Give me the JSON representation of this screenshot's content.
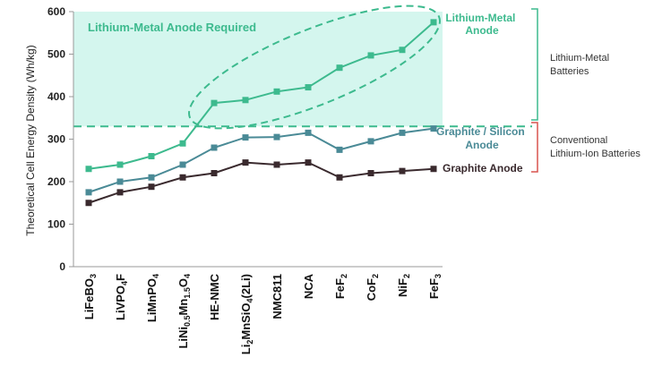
{
  "chart_data": {
    "type": "line",
    "ylabel": "Theoretical Cell Energy Density (Wh/kg)",
    "ylim": [
      0,
      600
    ],
    "yticks": [
      0,
      100,
      200,
      300,
      400,
      500,
      600
    ],
    "categories": [
      {
        "base": "LiFeBO",
        "parts": [
          [
            "LiFeBO",
            ""
          ],
          [
            "3",
            "sub"
          ]
        ]
      },
      {
        "base": "LiVPO4F",
        "parts": [
          [
            "LiVPO",
            ""
          ],
          [
            "4",
            "sub"
          ],
          [
            "F",
            ""
          ]
        ]
      },
      {
        "base": "LiMnPO4",
        "parts": [
          [
            "LiMnPO",
            ""
          ],
          [
            "4",
            "sub"
          ]
        ]
      },
      {
        "base": "LiNi0.5Mn1.5O4",
        "parts": [
          [
            "LiNi",
            ""
          ],
          [
            "0.5",
            "sub"
          ],
          [
            "Mn",
            ""
          ],
          [
            "1.5",
            "sub"
          ],
          [
            "O",
            ""
          ],
          [
            "4",
            "sub"
          ]
        ]
      },
      {
        "base": "HE-NMC",
        "parts": [
          [
            "HE-NMC",
            ""
          ]
        ]
      },
      {
        "base": "Li2MnSiO4(2Li)",
        "parts": [
          [
            "Li",
            ""
          ],
          [
            "2",
            "sub"
          ],
          [
            "MnSiO",
            ""
          ],
          [
            "4",
            "sub"
          ],
          [
            "(2Li)",
            ""
          ]
        ]
      },
      {
        "base": "NMC811",
        "parts": [
          [
            "NMC811",
            ""
          ]
        ]
      },
      {
        "base": "NCA",
        "parts": [
          [
            "NCA",
            ""
          ]
        ]
      },
      {
        "base": "FeF2",
        "parts": [
          [
            "FeF",
            ""
          ],
          [
            "2",
            "sub"
          ]
        ]
      },
      {
        "base": "CoF2",
        "parts": [
          [
            "CoF",
            ""
          ],
          [
            "2",
            "sub"
          ]
        ]
      },
      {
        "base": "NiF2",
        "parts": [
          [
            "NiF",
            ""
          ],
          [
            "2",
            "sub"
          ]
        ]
      },
      {
        "base": "FeF3",
        "parts": [
          [
            "FeF",
            ""
          ],
          [
            "3",
            "sub"
          ]
        ]
      }
    ],
    "series": [
      {
        "name": "Lithium-Metal Anode",
        "color": "#3dba8e",
        "values": [
          230,
          240,
          260,
          290,
          385,
          392,
          412,
          422,
          468,
          497,
          510,
          575
        ]
      },
      {
        "name": "Graphite / Silicon Anode",
        "color": "#4a8a96",
        "values": [
          175,
          200,
          210,
          240,
          280,
          304,
          305,
          315,
          275,
          295,
          315,
          325
        ]
      },
      {
        "name": "Graphite Anode",
        "color": "#3a2a2e",
        "values": [
          150,
          175,
          188,
          210,
          220,
          245,
          240,
          245,
          210,
          220,
          225,
          230
        ]
      }
    ],
    "region": {
      "label": "Lithium-Metal Anode Required",
      "threshold": 330,
      "fill": "#d4f6ee"
    },
    "brackets": [
      {
        "label_lines": [
          "Lithium-Metal",
          "Batteries"
        ],
        "color": "#3dba8e"
      },
      {
        "label_lines": [
          "Conventional",
          "Lithium-Ion Batteries"
        ],
        "color": "#d9534f"
      }
    ],
    "grid": false
  },
  "labels": {
    "li_metal_anode_lines": [
      "Lithium-Metal",
      "Anode"
    ],
    "graphite_silicon_lines": [
      "Graphite / Silicon",
      "Anode"
    ],
    "graphite": "Graphite Anode"
  }
}
